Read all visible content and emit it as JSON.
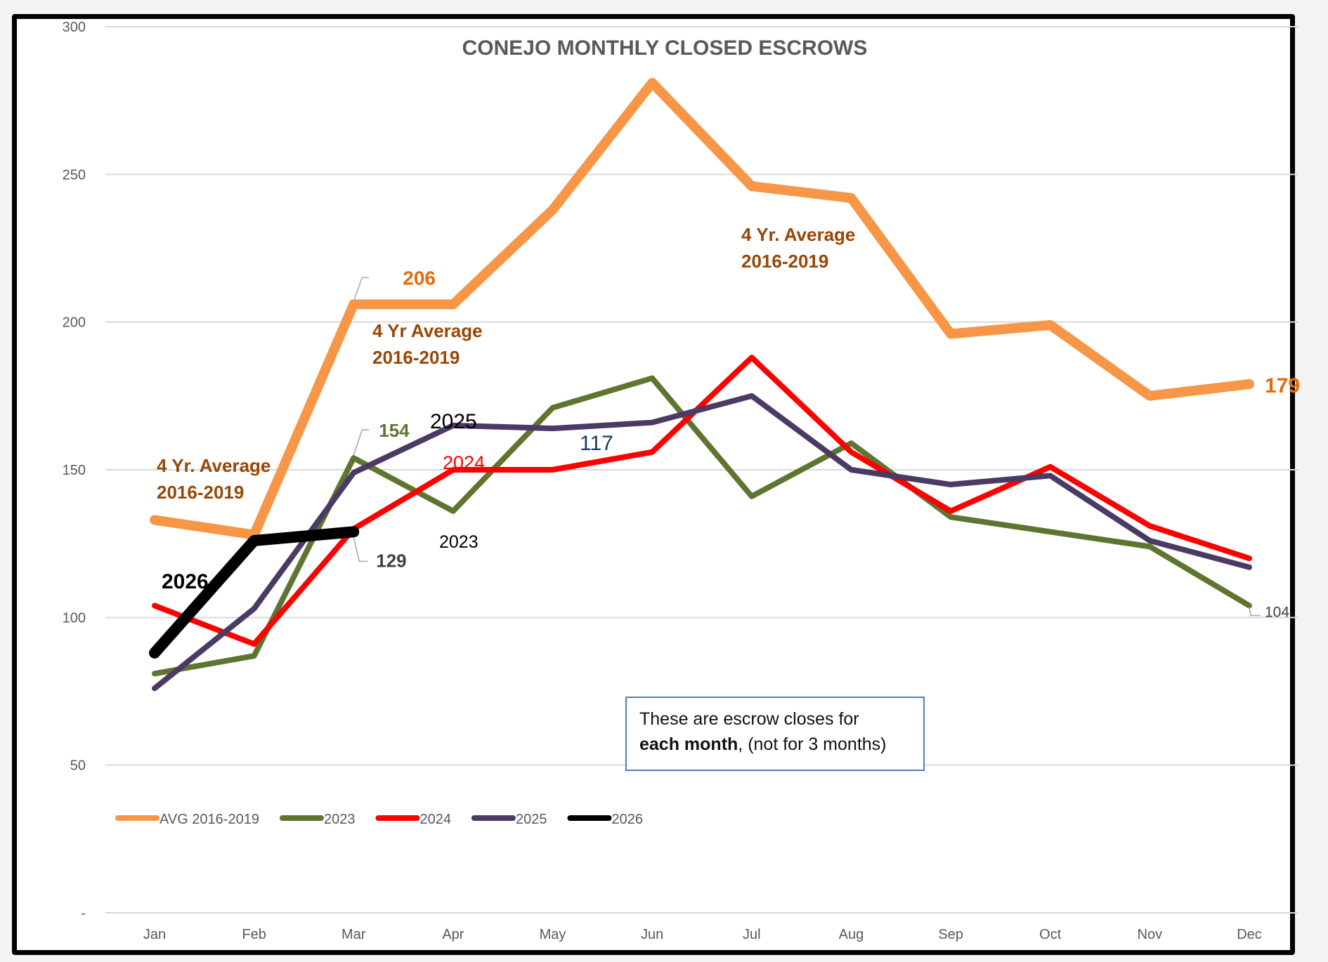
{
  "chart_data": {
    "type": "line",
    "title": "CONEJO MONTHLY CLOSED ESCROWS",
    "xlabel": "",
    "ylabel": "",
    "ylim": [
      0,
      300
    ],
    "yticks": [
      0,
      50,
      100,
      150,
      200,
      250,
      300
    ],
    "ytick_labels": [
      "-",
      "50",
      "100",
      "150",
      "200",
      "250",
      "300"
    ],
    "grid": true,
    "legend_position": "lower-left inside plot",
    "categories": [
      "Jan",
      "Feb",
      "Mar",
      "Apr",
      "May",
      "Jun",
      "Jul",
      "Aug",
      "Sep",
      "Oct",
      "Nov",
      "Dec"
    ],
    "series": [
      {
        "name": "AVG 2016-2019",
        "color": "#f79646",
        "values": [
          133,
          128,
          206,
          206,
          238,
          281,
          246,
          242,
          196,
          199,
          175,
          179
        ]
      },
      {
        "name": "2023",
        "color": "#5e7530",
        "values": [
          81,
          87,
          154,
          136,
          171,
          181,
          141,
          159,
          134,
          129,
          124,
          104
        ]
      },
      {
        "name": "2024",
        "color": "#ff0000",
        "values": [
          104,
          91,
          130,
          150,
          150,
          156,
          188,
          156,
          136,
          151,
          131,
          120
        ]
      },
      {
        "name": "2025",
        "color": "#4b3a63",
        "values": [
          76,
          103,
          149,
          165,
          164,
          166,
          175,
          150,
          145,
          148,
          126,
          117
        ]
      },
      {
        "name": "2026",
        "color": "#000000",
        "values": [
          88,
          126,
          129
        ]
      }
    ],
    "data_labels": [
      {
        "text": "206",
        "series": "AVG 2016-2019",
        "category": "Mar",
        "color": "#e46c0a"
      },
      {
        "text": "179",
        "series": "AVG 2016-2019",
        "category": "Dec",
        "color": "#e46c0a"
      },
      {
        "text": "154",
        "series": "2023",
        "category": "Mar",
        "color": "#5e7530"
      },
      {
        "text": "129",
        "series": "2026",
        "category": "Mar",
        "color": "#404040"
      },
      {
        "text": "104",
        "series": "2023",
        "category": "Dec",
        "color": "#404040"
      }
    ],
    "annotations": [
      {
        "text": "4 Yr. Average\n2016-2019",
        "color": "#974706"
      },
      {
        "text": "4 Yr Average\n2016-2019",
        "color": "#974706"
      },
      {
        "text": "4 Yr. Average\n2016-2019",
        "color": "#974706"
      },
      {
        "text": "2026",
        "color": "#000000"
      },
      {
        "text": "2025",
        "color": "#000000"
      },
      {
        "text": "2024",
        "color": "#ff0000"
      },
      {
        "text": "2023",
        "color": "#000000"
      },
      {
        "text": "117",
        "color": "#1f3864"
      }
    ],
    "note": {
      "line1": "These are escrow closes  for",
      "line2_bold": "each month",
      "line2_rest": ", (not for 3 months)"
    }
  }
}
